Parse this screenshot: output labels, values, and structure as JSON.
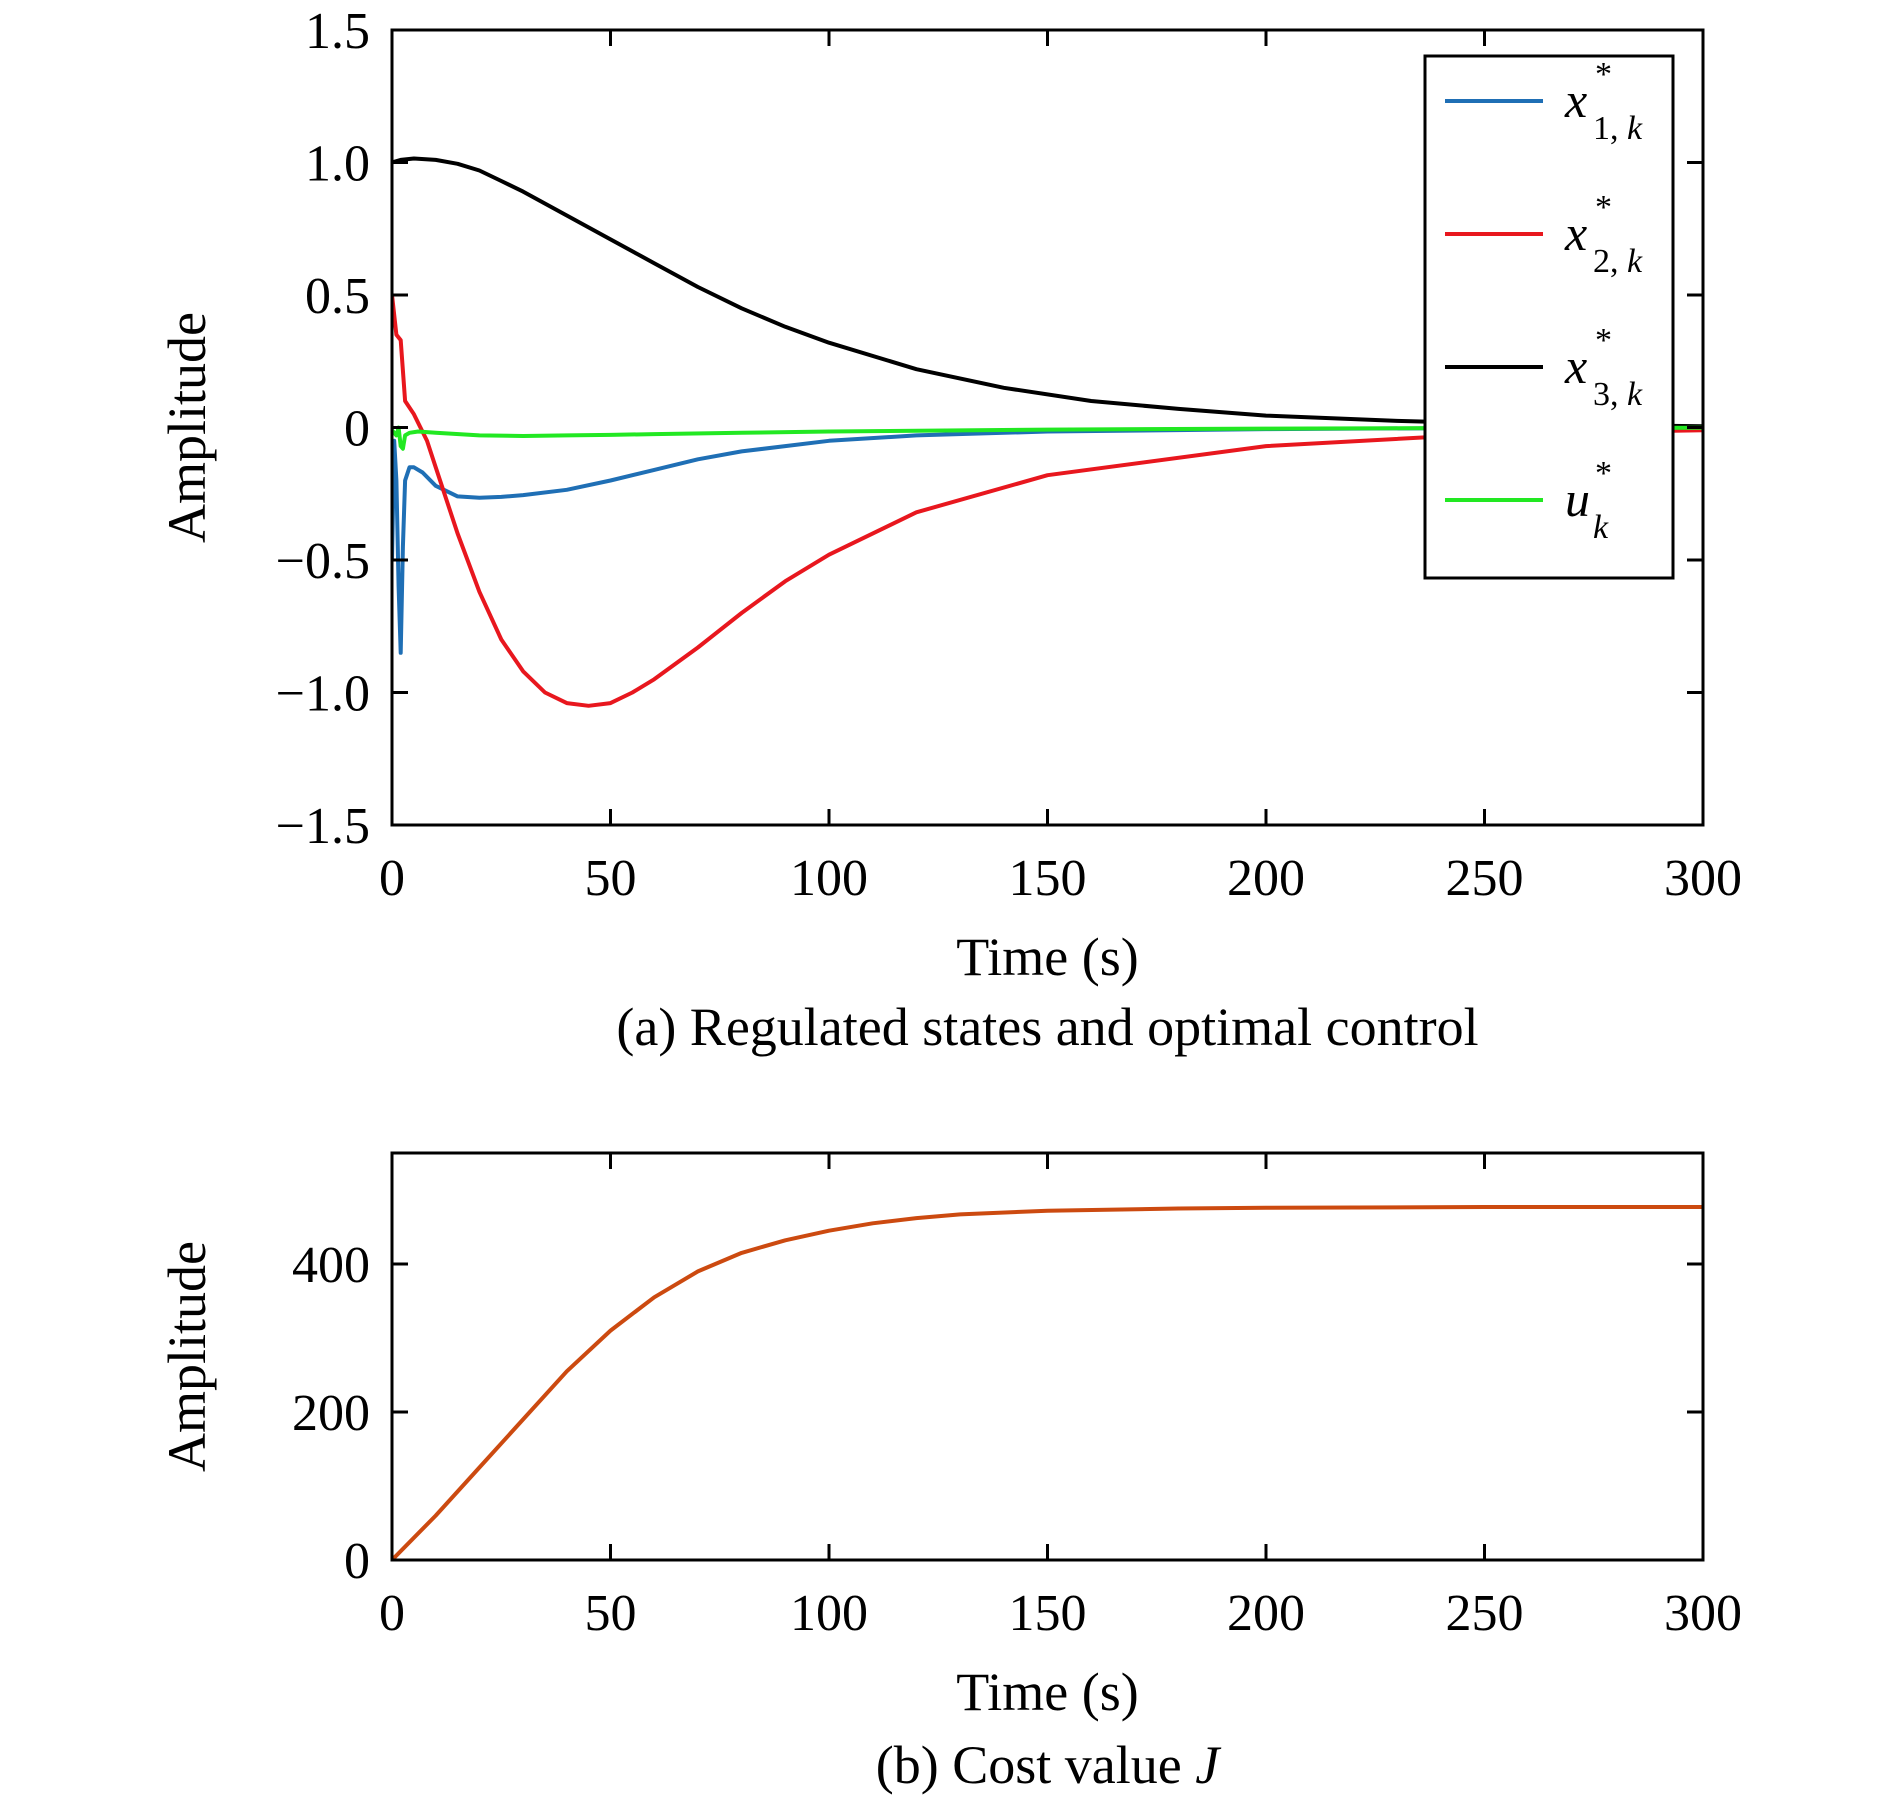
{
  "chart_data": [
    {
      "type": "line",
      "xlabel": "Time (s)",
      "ylabel": "Amplitude",
      "caption": "(a) Regulated states and optimal control",
      "xlim": [
        0,
        300
      ],
      "ylim": [
        -1.5,
        1.5
      ],
      "xticks": [
        0,
        50,
        100,
        150,
        200,
        250,
        300
      ],
      "xtick_labels": [
        "0",
        "50",
        "100",
        "150",
        "200",
        "250",
        "300"
      ],
      "yticks": [
        -1.5,
        -1.0,
        -0.5,
        0,
        0.5,
        1.0,
        1.5
      ],
      "ytick_labels": [
        "−1.5",
        "−1.0",
        "−0.5",
        "0",
        "0.5",
        "1.0",
        "1.5"
      ],
      "grid": false,
      "legend_position": "top-right",
      "series": [
        {
          "name": "x*1,k",
          "legend": {
            "base": "x",
            "sup": "*",
            "sub": "1, ",
            "subk": "k"
          },
          "color": "#1f6fb5",
          "x": [
            0,
            0.5,
            1,
            1.5,
            2,
            2.5,
            3,
            4,
            5,
            7,
            10,
            15,
            20,
            25,
            30,
            40,
            50,
            60,
            70,
            80,
            100,
            120,
            150,
            200,
            250,
            300
          ],
          "y": [
            -0.5,
            -0.05,
            -0.2,
            -0.6,
            -0.85,
            -0.45,
            -0.2,
            -0.15,
            -0.15,
            -0.17,
            -0.22,
            -0.26,
            -0.265,
            -0.262,
            -0.255,
            -0.235,
            -0.2,
            -0.16,
            -0.12,
            -0.09,
            -0.05,
            -0.03,
            -0.015,
            -0.006,
            -0.002,
            0
          ]
        },
        {
          "name": "x*2,k",
          "legend": {
            "base": "x",
            "sup": "*",
            "sub": "2, ",
            "subk": "k"
          },
          "color": "#e8171e",
          "x": [
            0,
            1,
            2,
            3,
            5,
            8,
            10,
            15,
            20,
            25,
            30,
            35,
            40,
            45,
            50,
            55,
            60,
            70,
            80,
            90,
            100,
            120,
            150,
            200,
            250,
            300
          ],
          "y": [
            0.5,
            0.35,
            0.33,
            0.1,
            0.05,
            -0.05,
            -0.15,
            -0.4,
            -0.62,
            -0.8,
            -0.92,
            -1.0,
            -1.04,
            -1.05,
            -1.04,
            -1.0,
            -0.95,
            -0.83,
            -0.7,
            -0.58,
            -0.48,
            -0.32,
            -0.18,
            -0.07,
            -0.025,
            -0.01
          ]
        },
        {
          "name": "x*3,k",
          "legend": {
            "base": "x",
            "sup": "*",
            "sub": "3, ",
            "subk": "k"
          },
          "color": "#000000",
          "x": [
            0,
            2,
            5,
            10,
            15,
            20,
            25,
            30,
            40,
            50,
            60,
            70,
            80,
            90,
            100,
            120,
            140,
            160,
            180,
            200,
            230,
            260,
            300
          ],
          "y": [
            1.0,
            1.01,
            1.015,
            1.01,
            0.995,
            0.97,
            0.93,
            0.89,
            0.8,
            0.71,
            0.62,
            0.53,
            0.45,
            0.38,
            0.32,
            0.22,
            0.15,
            0.1,
            0.07,
            0.045,
            0.025,
            0.012,
            0.005
          ]
        },
        {
          "name": "u*k",
          "legend": {
            "base": "u",
            "sup": "*",
            "sub": "",
            "subk": "k"
          },
          "color": "#22e822",
          "x": [
            0,
            1,
            1.5,
            2,
            2.5,
            3,
            4,
            6,
            10,
            20,
            30,
            40,
            50,
            60,
            80,
            100,
            150,
            200,
            250,
            300
          ],
          "y": [
            -0.01,
            -0.03,
            0.0,
            -0.07,
            -0.08,
            -0.03,
            -0.02,
            -0.015,
            -0.02,
            -0.03,
            -0.032,
            -0.03,
            -0.028,
            -0.025,
            -0.02,
            -0.015,
            -0.008,
            -0.004,
            -0.002,
            -0.001
          ]
        }
      ]
    },
    {
      "type": "line",
      "xlabel": "Time (s)",
      "ylabel": "Amplitude",
      "caption": "(b) Cost value ",
      "caption_var": "J",
      "xlim": [
        0,
        300
      ],
      "ylim": [
        0,
        550
      ],
      "xticks": [
        0,
        50,
        100,
        150,
        200,
        250,
        300
      ],
      "xtick_labels": [
        "0",
        "50",
        "100",
        "150",
        "200",
        "250",
        "300"
      ],
      "yticks": [
        0,
        200,
        400
      ],
      "ytick_labels": [
        "0",
        "200",
        "400"
      ],
      "grid": false,
      "series": [
        {
          "color": "#cc4a10",
          "x": [
            0,
            10,
            20,
            30,
            40,
            50,
            60,
            70,
            80,
            90,
            100,
            110,
            120,
            130,
            150,
            180,
            200,
            250,
            300
          ],
          "y": [
            0,
            60,
            125,
            190,
            255,
            310,
            355,
            390,
            415,
            432,
            445,
            455,
            462,
            467,
            472,
            475,
            476,
            477,
            477
          ]
        }
      ]
    }
  ]
}
